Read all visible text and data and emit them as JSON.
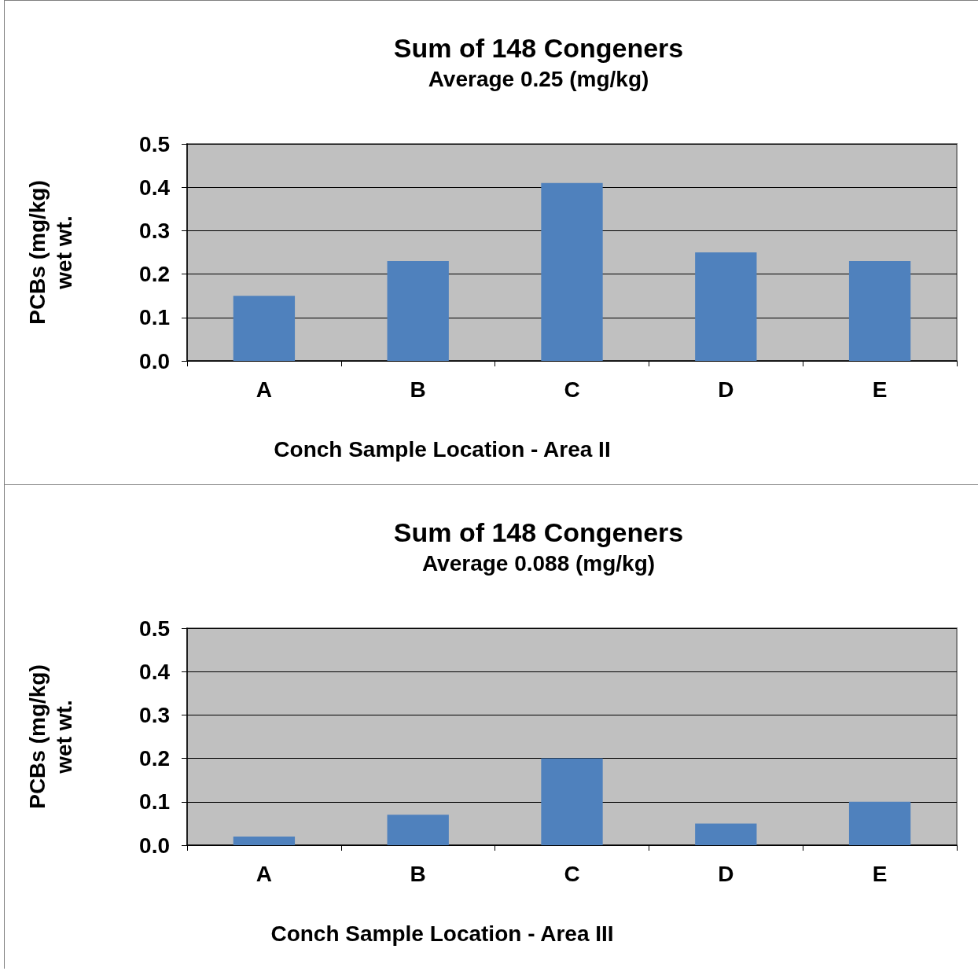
{
  "chart_data": [
    {
      "type": "bar",
      "title": "Sum of 148 Congeners",
      "subtitle": "Average 0.25 (mg/kg)",
      "xlabel": "Conch Sample Location - Area II",
      "ylabel": "PCBs (mg/kg)\nwet wt.",
      "categories": [
        "A",
        "B",
        "C",
        "D",
        "E"
      ],
      "values": [
        0.15,
        0.23,
        0.41,
        0.25,
        0.23
      ],
      "color": "#4f81bd",
      "ylim": [
        0,
        0.5
      ],
      "yticks": [
        {
          "value": 0,
          "label": "0.0"
        },
        {
          "value": 0.1,
          "label": "0.1"
        },
        {
          "value": 0.2,
          "label": "0.2"
        },
        {
          "value": 0.3,
          "label": "0.3"
        },
        {
          "value": 0.4,
          "label": "0.4"
        },
        {
          "value": 0.5,
          "label": "0.5"
        }
      ],
      "grid": "y"
    },
    {
      "type": "bar",
      "title": "Sum of 148 Congeners",
      "subtitle": "Average 0.088 (mg/kg)",
      "xlabel": "Conch Sample Location - Area III",
      "ylabel": "PCBs (mg/kg)\nwet wt.",
      "categories": [
        "A",
        "B",
        "C",
        "D",
        "E"
      ],
      "values": [
        0.02,
        0.07,
        0.2,
        0.05,
        0.1
      ],
      "color": "#4f81bd",
      "ylim": [
        0,
        0.5
      ],
      "yticks": [
        {
          "value": 0,
          "label": "0.0"
        },
        {
          "value": 0.1,
          "label": "0.1"
        },
        {
          "value": 0.2,
          "label": "0.2"
        },
        {
          "value": 0.3,
          "label": "0.3"
        },
        {
          "value": 0.4,
          "label": "0.4"
        },
        {
          "value": 0.5,
          "label": "0.5"
        }
      ],
      "grid": "y"
    }
  ]
}
